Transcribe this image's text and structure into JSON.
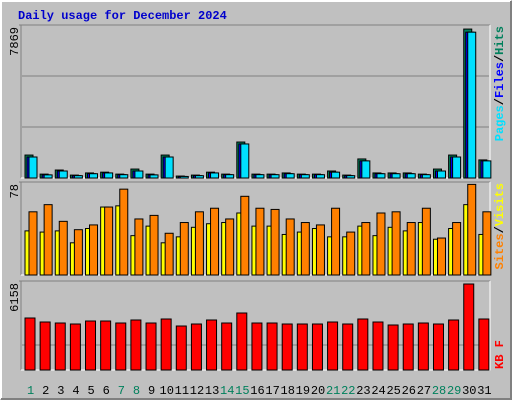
{
  "title": "Daily usage for December 2024",
  "legend_separator": "/",
  "chart_data": [
    {
      "type": "bar",
      "ylim": [
        0,
        7869
      ],
      "yticks": [
        7869
      ],
      "gridlines": [
        2623,
        5246
      ],
      "series": [
        {
          "name": "Pages",
          "color": "#00e0ff",
          "values": [
            1080,
            160,
            360,
            120,
            220,
            260,
            170,
            360,
            160,
            1080,
            80,
            120,
            260,
            170,
            1750,
            170,
            170,
            220,
            170,
            170,
            300,
            120,
            880,
            220,
            220,
            220,
            170,
            360,
            1080,
            7500,
            880
          ]
        },
        {
          "name": "Files",
          "color": "#0000ff",
          "values": [
            1080,
            160,
            360,
            120,
            220,
            260,
            170,
            360,
            160,
            1080,
            80,
            120,
            260,
            170,
            1750,
            170,
            170,
            220,
            170,
            170,
            300,
            120,
            880,
            220,
            220,
            220,
            170,
            360,
            1080,
            7500,
            880
          ]
        },
        {
          "name": "Hits",
          "color": "#00805c",
          "values": [
            1180,
            200,
            410,
            150,
            260,
            300,
            200,
            460,
            200,
            1180,
            100,
            150,
            300,
            200,
            1850,
            200,
            200,
            260,
            200,
            200,
            360,
            150,
            980,
            260,
            260,
            260,
            200,
            460,
            1180,
            7660,
            930
          ]
        }
      ]
    },
    {
      "type": "bar",
      "ylim": [
        0,
        78
      ],
      "yticks": [
        78
      ],
      "series": [
        {
          "name": "Sites",
          "color": "#ff8000",
          "values": [
            53,
            59,
            45,
            38,
            42,
            57,
            72,
            47,
            50,
            35,
            44,
            53,
            56,
            47,
            66,
            56,
            55,
            47,
            44,
            42,
            56,
            36,
            44,
            52,
            53,
            44,
            56,
            31,
            44,
            76,
            53
          ]
        },
        {
          "name": "Visits",
          "color": "#ffff00",
          "values": [
            37,
            36,
            37,
            27,
            39,
            57,
            58,
            33,
            41,
            27,
            32,
            40,
            43,
            44,
            52,
            41,
            41,
            34,
            36,
            39,
            32,
            32,
            41,
            33,
            40,
            37,
            44,
            30,
            39,
            59,
            34
          ]
        }
      ]
    },
    {
      "type": "bar",
      "ylim": [
        0,
        6158
      ],
      "yticks": [
        6158
      ],
      "gridlines": [
        1730
      ],
      "categories": [
        "1",
        "2",
        "3",
        "4",
        "5",
        "6",
        "7",
        "8",
        "9",
        "10",
        "11",
        "12",
        "13",
        "14",
        "15",
        "16",
        "17",
        "18",
        "19",
        "20",
        "21",
        "22",
        "23",
        "24",
        "25",
        "26",
        "27",
        "28",
        "29",
        "30",
        "31"
      ],
      "category_colors": [
        "#00805c",
        "#000000",
        "#000000",
        "#000000",
        "#000000",
        "#000000",
        "#00805c",
        "#00805c",
        "#000000",
        "#000000",
        "#000000",
        "#000000",
        "#000000",
        "#00805c",
        "#00805c",
        "#000000",
        "#000000",
        "#000000",
        "#000000",
        "#000000",
        "#00805c",
        "#00805c",
        "#000000",
        "#000000",
        "#000000",
        "#000000",
        "#000000",
        "#00805c",
        "#00805c",
        "#000000",
        "#000000"
      ],
      "series": [
        {
          "name": "KB F",
          "color": "#ff0000",
          "values": [
            3598,
            3321,
            3252,
            3183,
            3390,
            3390,
            3252,
            3460,
            3252,
            3529,
            3044,
            3183,
            3460,
            3252,
            3944,
            3252,
            3252,
            3183,
            3183,
            3183,
            3321,
            3183,
            3529,
            3321,
            3114,
            3183,
            3252,
            3183,
            3460,
            5950,
            3529
          ]
        }
      ]
    }
  ]
}
